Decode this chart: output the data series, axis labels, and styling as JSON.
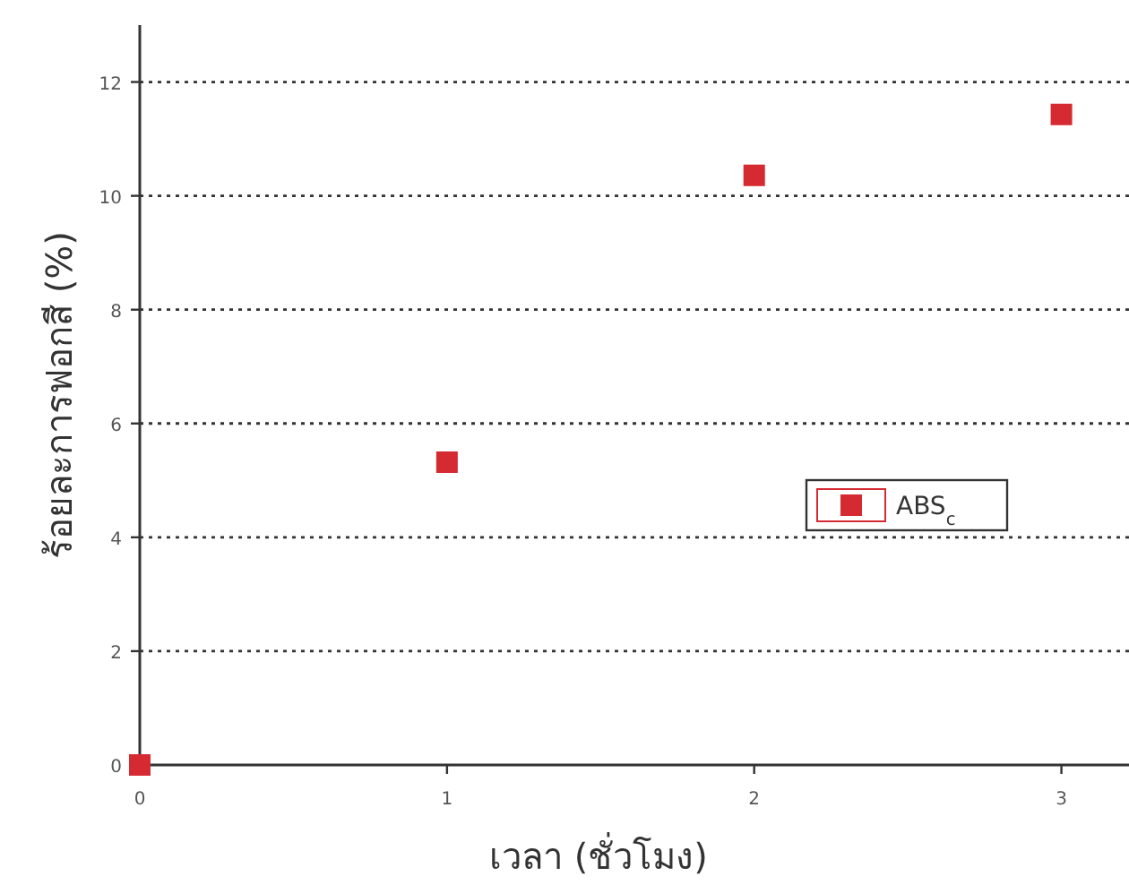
{
  "chart_data": {
    "type": "scatter",
    "xlabel": "เวลา (ชั่วโมง)",
    "ylabel": "ร้อยละการฟอกสี (%)",
    "x": [
      0,
      1,
      2,
      3
    ],
    "series": [
      {
        "name": "ABS$_{c}$",
        "color": "#d62a33",
        "values": [
          0,
          5.32,
          10.36,
          11.43
        ]
      }
    ],
    "xlim": [
      0,
      3.22
    ],
    "ylim": [
      0,
      13
    ],
    "xticks": [
      0,
      1,
      2,
      3
    ],
    "yticks": [
      0,
      2,
      4,
      6,
      8,
      10,
      12
    ],
    "grid": "y",
    "legend": "right",
    "marker": "square"
  }
}
